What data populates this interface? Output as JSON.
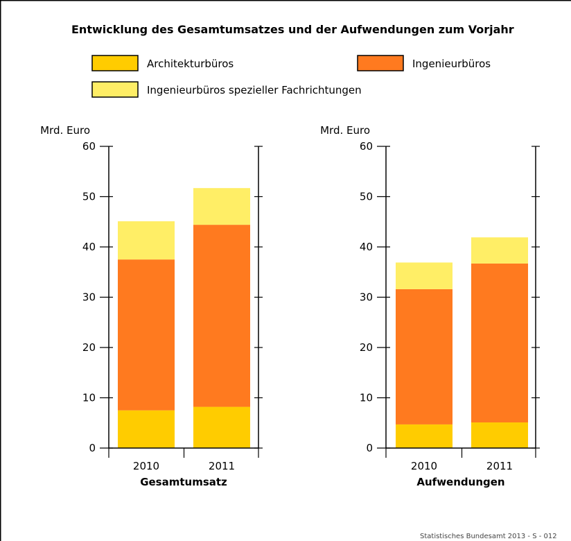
{
  "title": "Entwicklung des Gesamtumsatzes und der Aufwendungen zum Vorjahr",
  "legend": [
    {
      "label": "Architekturbüros",
      "color": "#FFCC00"
    },
    {
      "label": "Ingenieurbüros",
      "color": "#FF7A1F"
    },
    {
      "label": "Ingenieurbüros spezieller Fachrichtungen",
      "color": "#FFEE66"
    }
  ],
  "source": "Statistisches Bundesamt 2013 - S - 012",
  "chart_data": [
    {
      "type": "bar",
      "stacked": true,
      "title": "",
      "xlabel": "Gesamtumsatz",
      "ylabel": "Mrd. Euro",
      "ylim": [
        0,
        60
      ],
      "yticks": [
        0,
        10,
        20,
        30,
        40,
        50,
        60
      ],
      "categories": [
        "2010",
        "2011"
      ],
      "series": [
        {
          "name": "Architekturbüros",
          "color": "#FFCC00",
          "values": [
            7.5,
            8.2
          ]
        },
        {
          "name": "Ingenieurbüros",
          "color": "#FF7A1F",
          "values": [
            30.0,
            36.2
          ]
        },
        {
          "name": "Ingenieurbüros spezieller Fachrichtungen",
          "color": "#FFEE66",
          "values": [
            7.6,
            7.3
          ]
        }
      ]
    },
    {
      "type": "bar",
      "stacked": true,
      "title": "",
      "xlabel": "Aufwendungen",
      "ylabel": "Mrd. Euro",
      "ylim": [
        0,
        60
      ],
      "yticks": [
        0,
        10,
        20,
        30,
        40,
        50,
        60
      ],
      "categories": [
        "2010",
        "2011"
      ],
      "series": [
        {
          "name": "Architekturbüros",
          "color": "#FFCC00",
          "values": [
            4.7,
            5.1
          ]
        },
        {
          "name": "Ingenieurbüros",
          "color": "#FF7A1F",
          "values": [
            26.9,
            31.6
          ]
        },
        {
          "name": "Ingenieurbüros spezieller Fachrichtungen",
          "color": "#FFEE66",
          "values": [
            5.3,
            5.2
          ]
        }
      ]
    }
  ]
}
